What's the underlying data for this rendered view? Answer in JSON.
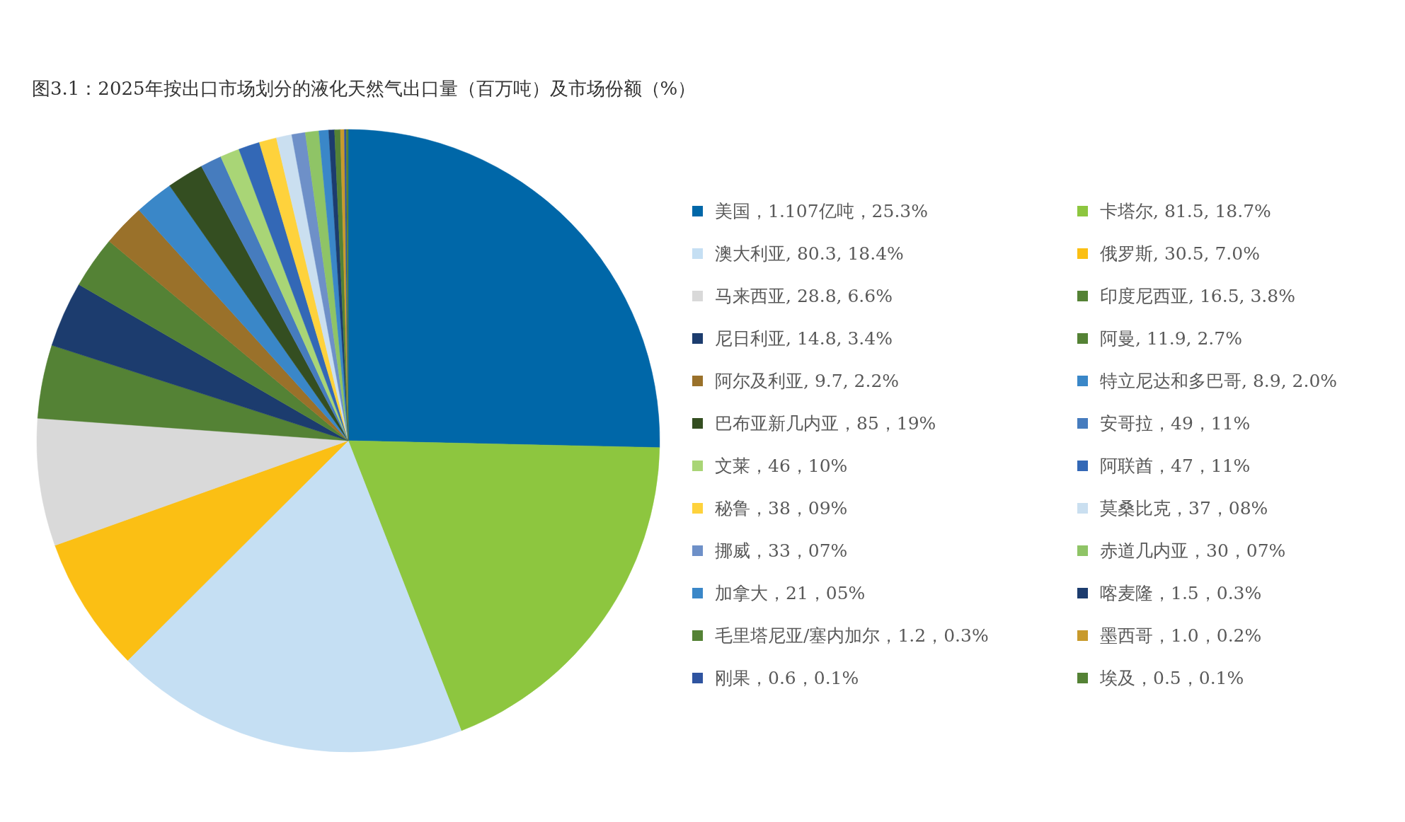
{
  "chart_data": {
    "type": "pie",
    "title": "图3.1：2025年按出口市场划分的液化天然气出口量（百万吨）及市场份额（%）",
    "categories": [
      "美国，1.107亿吨，25.3%",
      "卡塔尔, 81.5, 18.7%",
      "澳大利亚, 80.3, 18.4%",
      "俄罗斯, 30.5, 7.0%",
      "马来西亚, 28.8, 6.6%",
      "印度尼西亚, 16.5, 3.8%",
      "尼日利亚, 14.8, 3.4%",
      "阿曼, 11.9, 2.7%",
      "阿尔及利亚, 9.7, 2.2%",
      "特立尼达和多巴哥, 8.9, 2.0%",
      "巴布亚新几内亚，85，19%",
      "安哥拉，49，11%",
      "文莱，46，10%",
      "阿联酋，47，11%",
      "秘鲁，38，09%",
      "莫桑比克，37，08%",
      "挪威，33，07%",
      "赤道几内亚，30，07%",
      "加拿大，21，05%",
      "喀麦隆，1.5，0.3%",
      "毛里塔尼亚/塞内加尔，1.2，0.3%",
      "墨西哥，1.0，0.2%",
      "刚果，0.6，0.1%",
      "埃及，0.5，0.1%"
    ],
    "values": [
      25.3,
      18.7,
      18.4,
      7.0,
      6.6,
      3.8,
      3.4,
      2.7,
      2.2,
      2.0,
      1.9,
      1.1,
      1.0,
      1.1,
      0.9,
      0.8,
      0.7,
      0.7,
      0.5,
      0.3,
      0.3,
      0.2,
      0.1,
      0.1
    ],
    "colors": [
      "#0067a8",
      "#8dc63f",
      "#c5dff3",
      "#fbbf14",
      "#d9d9d9",
      "#548235",
      "#1c3c6e",
      "#548235",
      "#9a712a",
      "#3a87c8",
      "#344e21",
      "#467cbe",
      "#a9d576",
      "#3368b6",
      "#fed23c",
      "#cadff0",
      "#6e90c8",
      "#8fc466",
      "#3a87c8",
      "#1c3c6e",
      "#548235",
      "#c89a2c",
      "#2f54a0",
      "#548235"
    ],
    "legend": "right"
  }
}
